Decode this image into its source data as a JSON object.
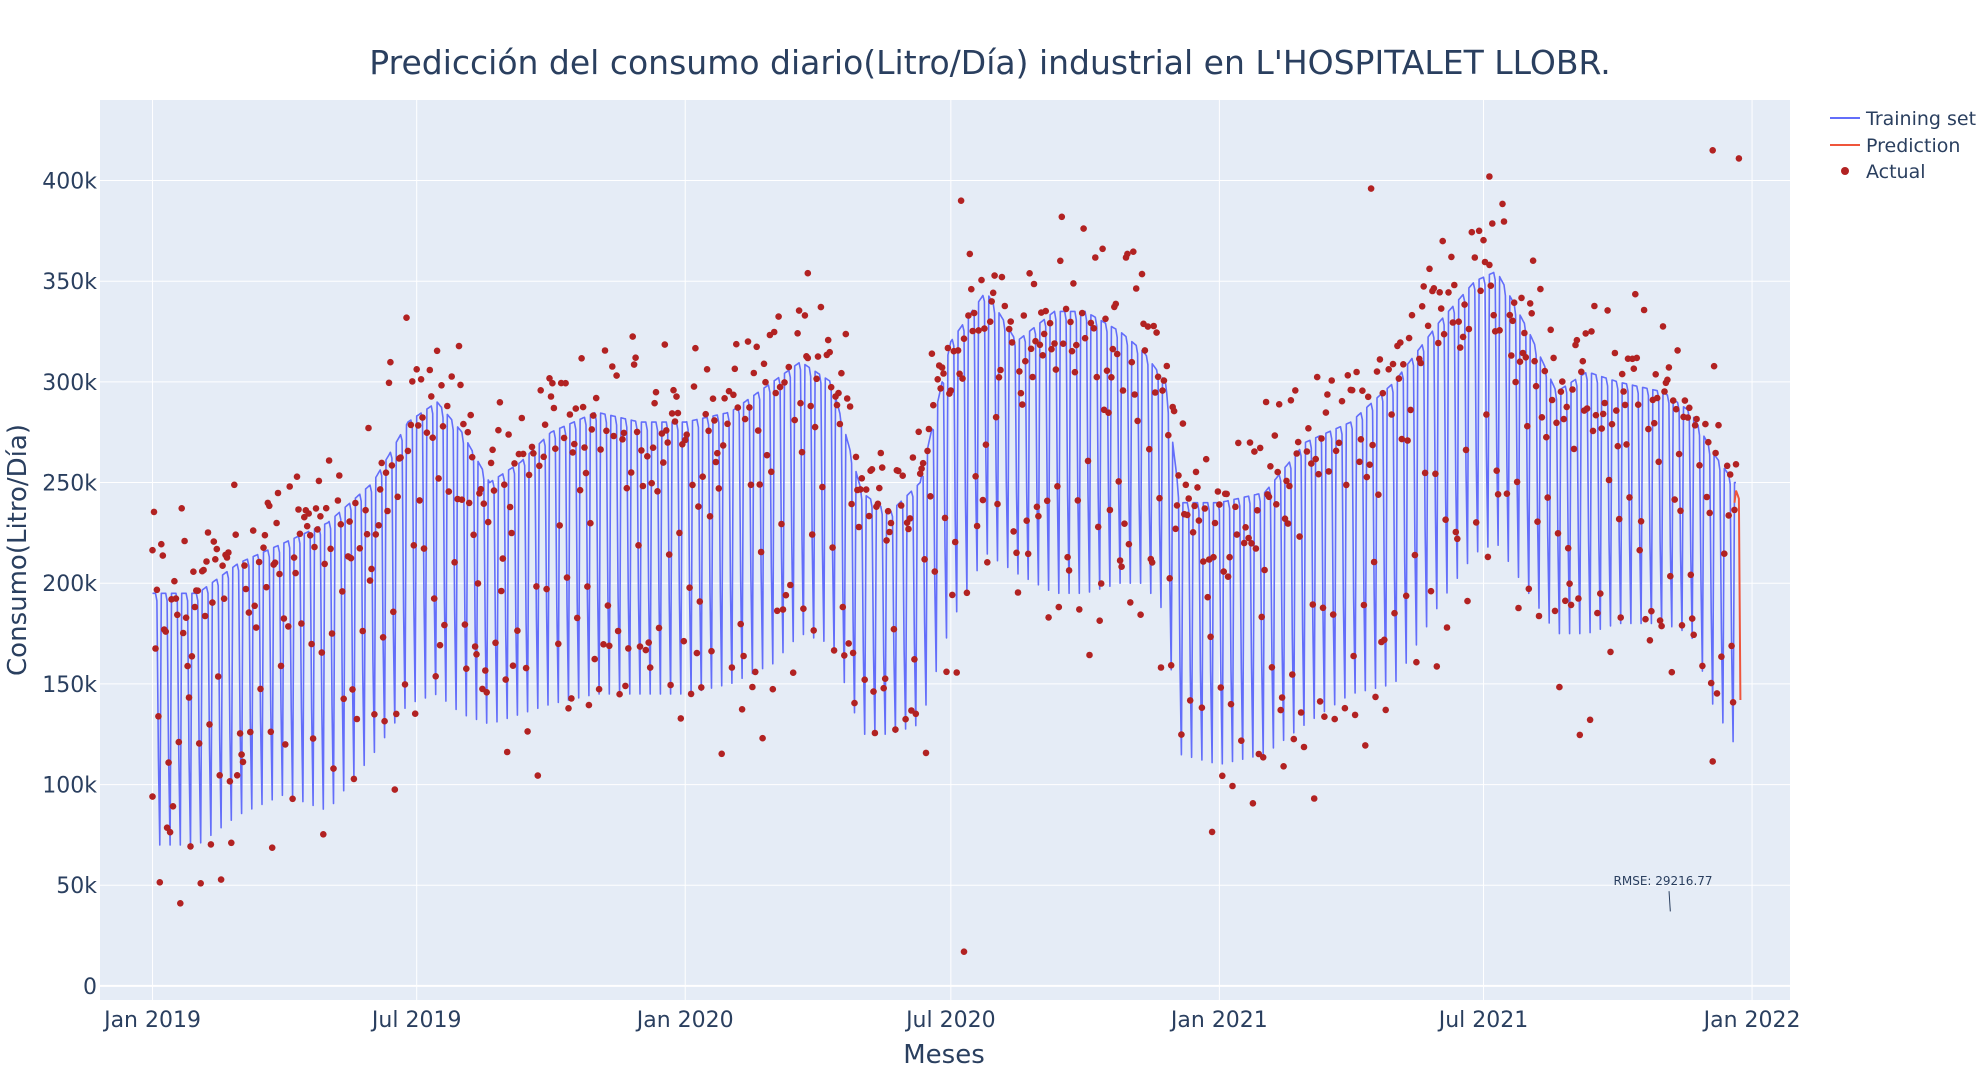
{
  "chart_data": {
    "type": "line",
    "title": "Predicción del consumo diario(Litro/Día) industrial en L'HOSPITALET LLOBR.",
    "xlabel": "Meses",
    "ylabel": "Consumo(Litro/Día)",
    "xlim": [
      "2018-11-26",
      "2022-01-27"
    ],
    "ylim": [
      -7000,
      440000
    ],
    "x_ticks": [
      {
        "date": "2019-01-01",
        "label": "Jan 2019"
      },
      {
        "date": "2019-07-01",
        "label": "Jul 2019"
      },
      {
        "date": "2020-01-01",
        "label": "Jan 2020"
      },
      {
        "date": "2020-07-01",
        "label": "Jul 2020"
      },
      {
        "date": "2021-01-01",
        "label": "Jan 2021"
      },
      {
        "date": "2021-07-01",
        "label": "Jul 2021"
      },
      {
        "date": "2022-01-01",
        "label": "Jan 2022"
      }
    ],
    "y_ticks": [
      {
        "value": 0,
        "label": "0"
      },
      {
        "value": 50000,
        "label": "50k"
      },
      {
        "value": 100000,
        "label": "100k"
      },
      {
        "value": 150000,
        "label": "150k"
      },
      {
        "value": 200000,
        "label": "200k"
      },
      {
        "value": 250000,
        "label": "250k"
      },
      {
        "value": 300000,
        "label": "300k"
      },
      {
        "value": 350000,
        "label": "350k"
      },
      {
        "value": 400000,
        "label": "400k"
      }
    ],
    "grid": true,
    "legend_position": "top-right",
    "series": [
      {
        "name": "Training set",
        "type": "line",
        "color": "#636efa",
        "x_start": "2019-01-01",
        "x_end": "2021-12-21",
        "weekday_envelope": {
          "x": [
            "2019-01-01",
            "2019-02-01",
            "2019-03-01",
            "2019-04-01",
            "2019-05-01",
            "2019-06-01",
            "2019-06-25",
            "2019-07-15",
            "2019-08-01",
            "2019-08-20",
            "2019-09-10",
            "2019-10-01",
            "2019-11-01",
            "2019-12-01",
            "2020-01-01",
            "2020-02-01",
            "2020-03-01",
            "2020-03-20",
            "2020-04-10",
            "2020-05-01",
            "2020-05-20",
            "2020-06-10",
            "2020-07-01",
            "2020-07-25",
            "2020-08-15",
            "2020-09-10",
            "2020-10-01",
            "2020-10-25",
            "2020-11-10",
            "2020-11-25",
            "2020-12-05",
            "2021-01-01",
            "2021-02-01",
            "2021-03-01",
            "2021-04-01",
            "2021-05-01",
            "2021-06-01",
            "2021-06-25",
            "2021-07-10",
            "2021-08-01",
            "2021-08-20",
            "2021-09-10",
            "2021-10-01",
            "2021-11-01",
            "2021-11-20",
            "2021-12-05",
            "2021-12-20"
          ],
          "y": [
            195000,
            195000,
            210000,
            220000,
            230000,
            250000,
            280000,
            290000,
            275000,
            250000,
            260000,
            275000,
            285000,
            280000,
            280000,
            285000,
            300000,
            310000,
            300000,
            245000,
            235000,
            250000,
            320000,
            345000,
            320000,
            335000,
            335000,
            325000,
            315000,
            300000,
            240000,
            240000,
            245000,
            270000,
            280000,
            300000,
            330000,
            350000,
            355000,
            325000,
            295000,
            305000,
            300000,
            295000,
            285000,
            265000,
            250000
          ]
        },
        "weekend_envelope": {
          "x": [
            "2019-01-01",
            "2019-02-01",
            "2019-03-01",
            "2019-04-01",
            "2019-05-01",
            "2019-06-01",
            "2019-06-25",
            "2019-07-15",
            "2019-08-01",
            "2019-08-20",
            "2019-09-10",
            "2019-10-01",
            "2019-11-01",
            "2019-12-01",
            "2020-01-01",
            "2020-02-01",
            "2020-03-01",
            "2020-03-20",
            "2020-04-10",
            "2020-05-01",
            "2020-05-20",
            "2020-06-10",
            "2020-07-01",
            "2020-07-25",
            "2020-08-15",
            "2020-09-10",
            "2020-10-01",
            "2020-10-25",
            "2020-11-10",
            "2020-11-25",
            "2020-12-05",
            "2021-01-01",
            "2021-02-01",
            "2021-03-01",
            "2021-04-01",
            "2021-05-01",
            "2021-06-01",
            "2021-06-25",
            "2021-07-10",
            "2021-08-01",
            "2021-08-20",
            "2021-09-10",
            "2021-10-01",
            "2021-11-01",
            "2021-11-20",
            "2021-12-05",
            "2021-12-20"
          ],
          "y": [
            70000,
            70000,
            85000,
            95000,
            87000,
            115000,
            140000,
            145000,
            135000,
            130000,
            135000,
            140000,
            145000,
            145000,
            145000,
            150000,
            160000,
            175000,
            170000,
            125000,
            125000,
            130000,
            180000,
            215000,
            205000,
            195000,
            195000,
            200000,
            200000,
            185000,
            115000,
            110000,
            115000,
            130000,
            145000,
            150000,
            190000,
            215000,
            220000,
            195000,
            175000,
            175000,
            180000,
            180000,
            175000,
            140000,
            120000
          ]
        }
      },
      {
        "name": "Prediction",
        "type": "line",
        "color": "#ef553b",
        "x": [
          "2021-12-20",
          "2021-12-21",
          "2021-12-22",
          "2021-12-23",
          "2021-12-24"
        ],
        "y": [
          240000,
          246000,
          244000,
          242000,
          142000
        ]
      },
      {
        "name": "Actual",
        "type": "scatter",
        "color": "#b22222",
        "x_start": "2019-01-01",
        "x_end": "2021-12-24",
        "notable_points": [
          {
            "x": "2020-07-10",
            "y": 17000
          },
          {
            "x": "2020-07-08",
            "y": 390000
          },
          {
            "x": "2021-04-15",
            "y": 396000
          },
          {
            "x": "2021-07-05",
            "y": 402000
          },
          {
            "x": "2021-12-05",
            "y": 415000
          },
          {
            "x": "2021-12-23",
            "y": 411000
          },
          {
            "x": "2019-01-01",
            "y": 94000
          },
          {
            "x": "2020-03-25",
            "y": 354000
          }
        ]
      }
    ],
    "annotations": [
      {
        "text": "RMSE: 29216.77",
        "x": "2021-11-01",
        "y": 52000,
        "arrow_to": {
          "x": "2021-11-06",
          "y": 37000
        }
      }
    ]
  }
}
